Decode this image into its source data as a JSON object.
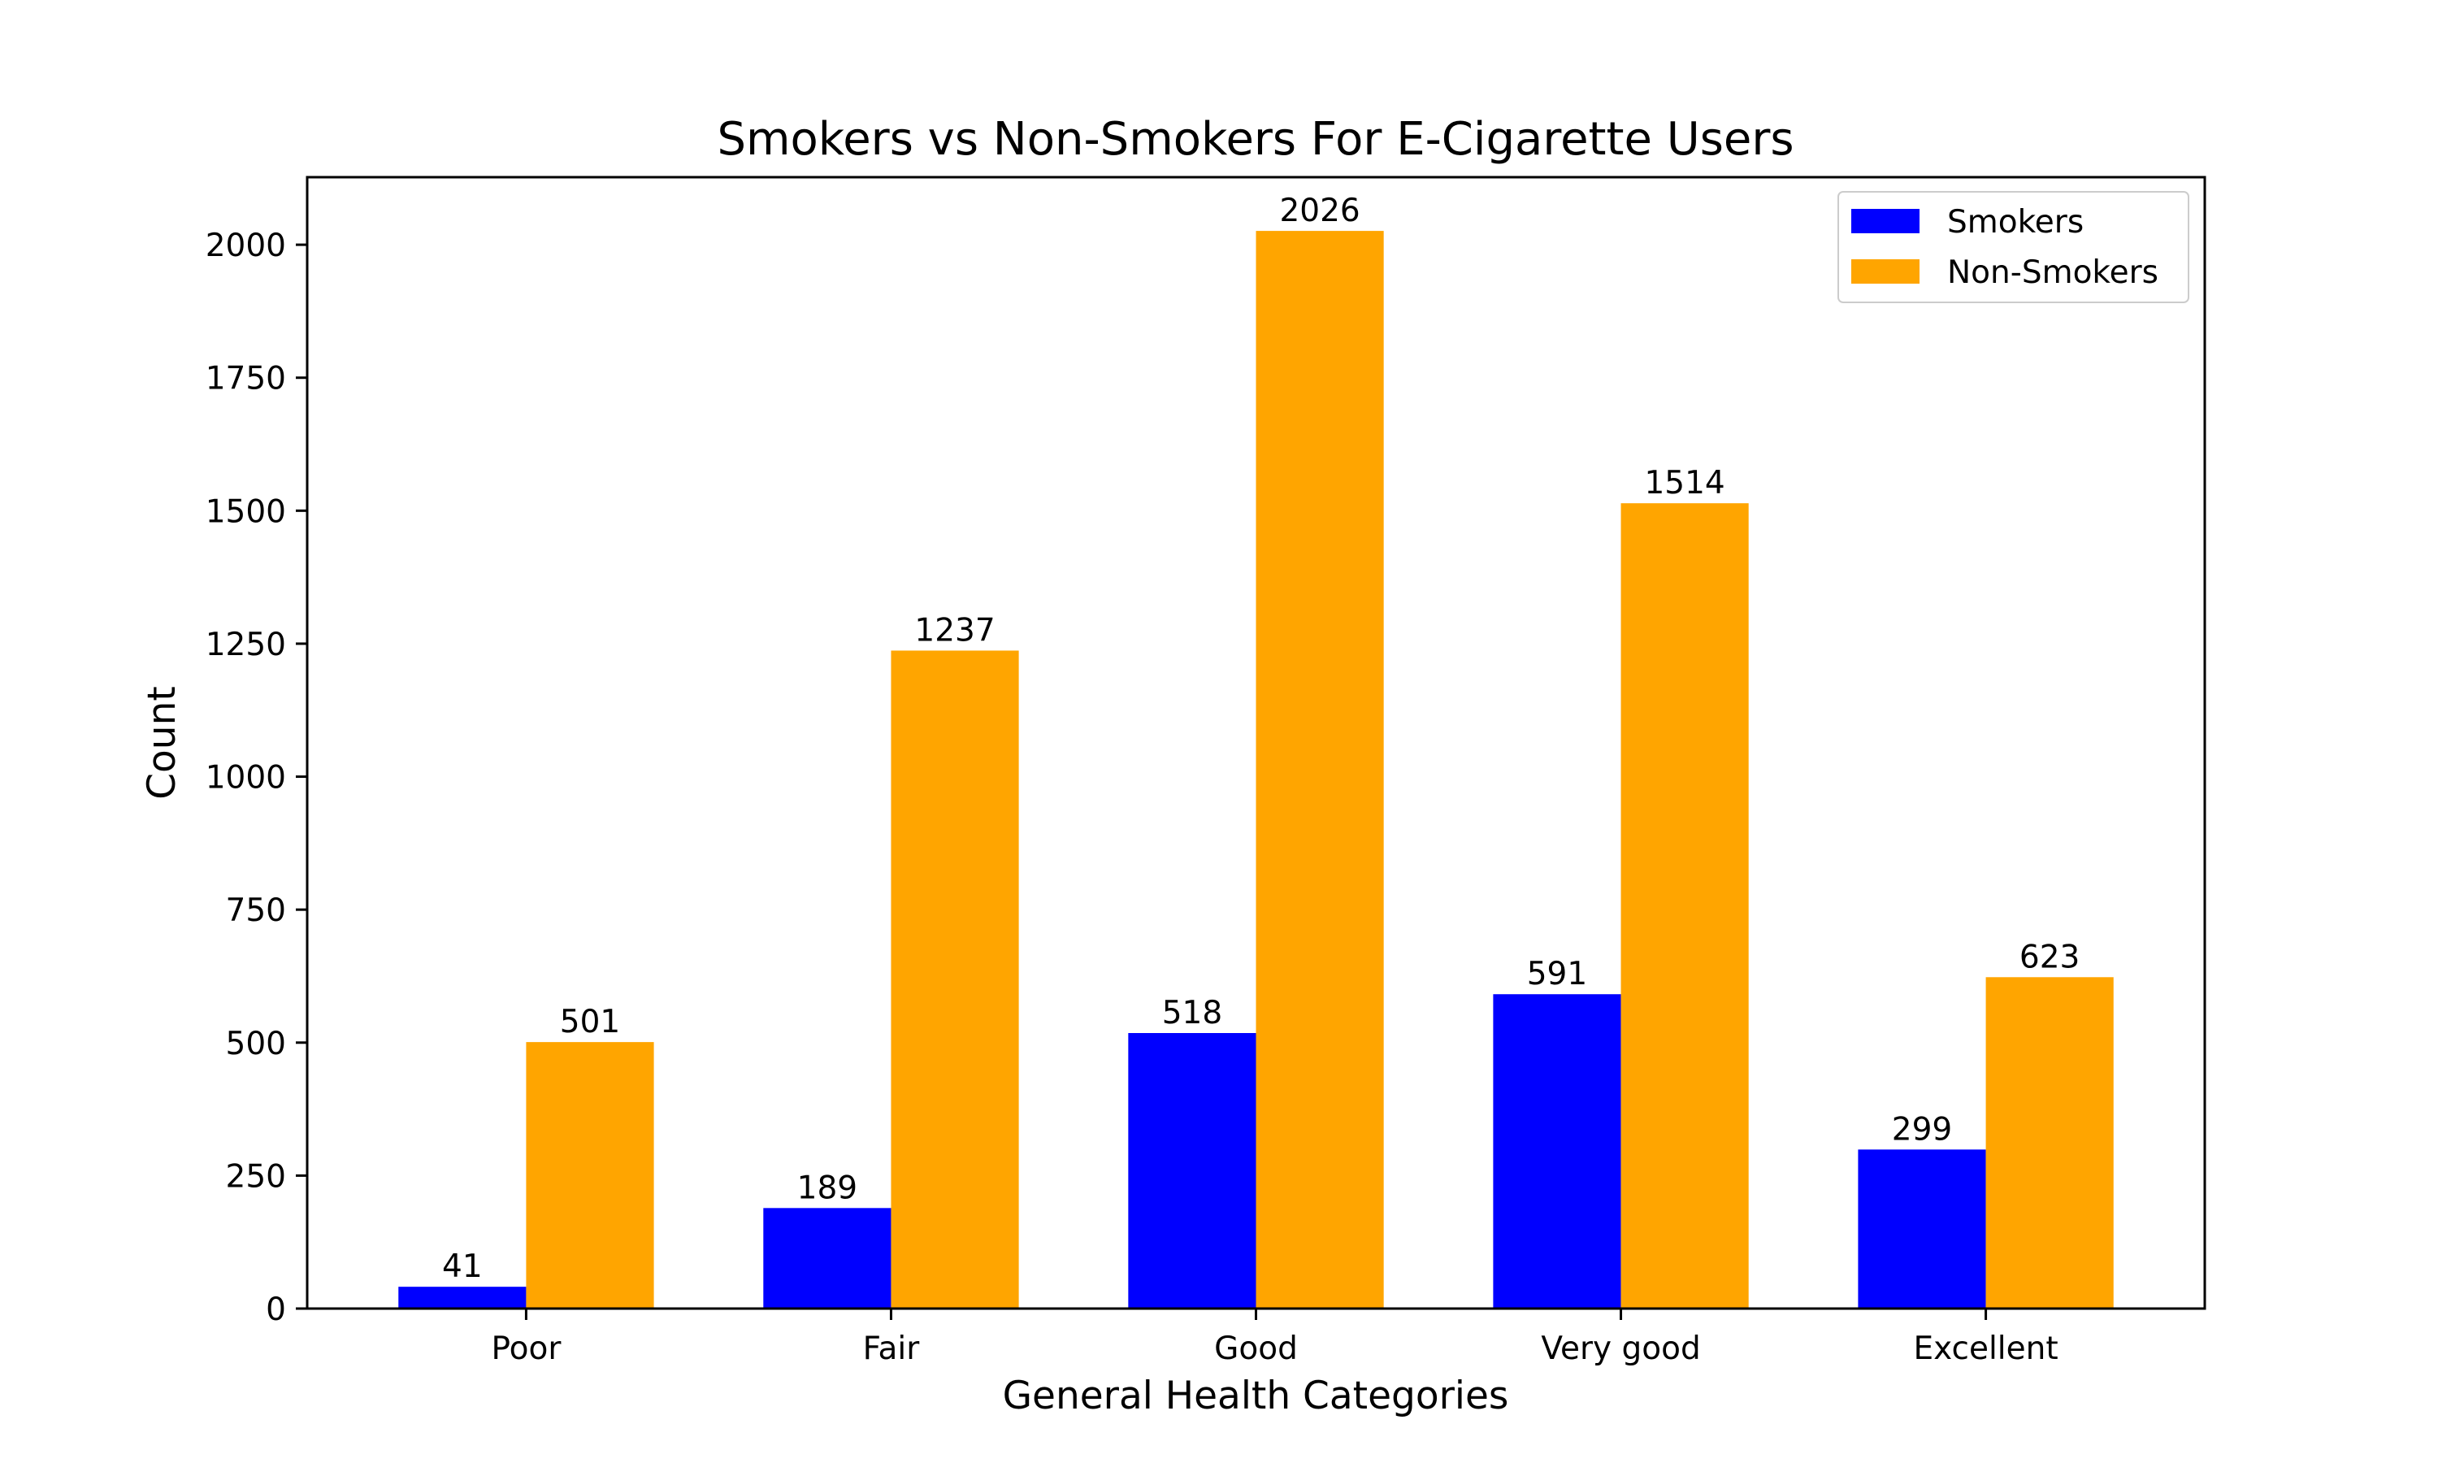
{
  "chart_data": {
    "type": "bar",
    "title": "Smokers vs Non-Smokers For E-Cigarette Users",
    "xlabel": "General Health Categories",
    "ylabel": "Count",
    "categories": [
      "Poor",
      "Fair",
      "Good",
      "Very good",
      "Excellent"
    ],
    "series": [
      {
        "name": "Smokers",
        "color": "#0000ff",
        "values": [
          41,
          189,
          518,
          591,
          299
        ]
      },
      {
        "name": "Non-Smokers",
        "color": "#ffa500",
        "values": [
          501,
          1237,
          2026,
          1514,
          623
        ]
      }
    ],
    "ylim": [
      0,
      2127
    ],
    "yticks": [
      0,
      250,
      500,
      750,
      1000,
      1250,
      1500,
      1750,
      2000
    ],
    "grid": false,
    "legend_position": "top-right",
    "data_labels": true
  }
}
